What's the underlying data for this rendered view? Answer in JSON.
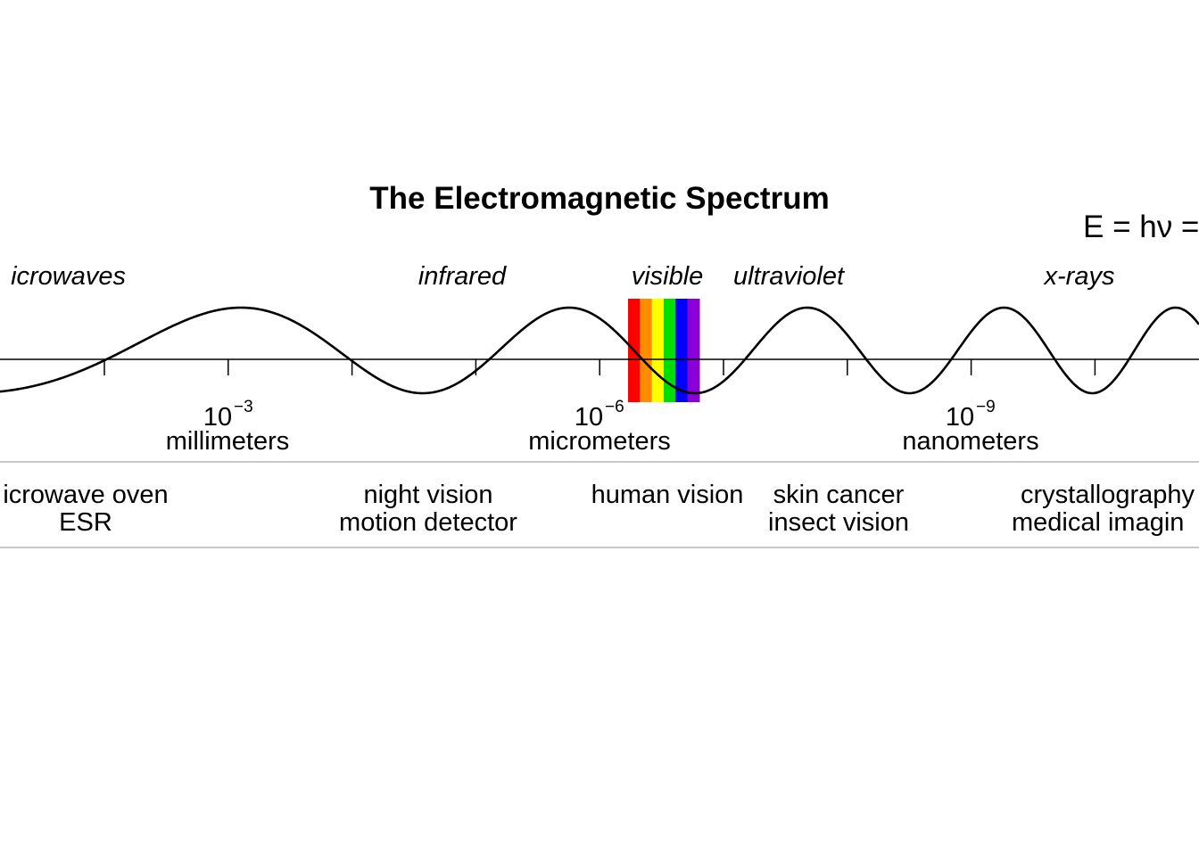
{
  "title": "The Electromagnetic Spectrum",
  "formula": "E = hν =",
  "regions": [
    {
      "id": "microwaves",
      "label": "icrowaves"
    },
    {
      "id": "infrared",
      "label": "infrared"
    },
    {
      "id": "visible",
      "label": "visible"
    },
    {
      "id": "ultraviolet",
      "label": "ultraviolet"
    },
    {
      "id": "x-rays",
      "label": "x-rays"
    }
  ],
  "scale_labels": [
    {
      "id": "millimeters",
      "base": "10",
      "exponent": "−3",
      "unit": "millimeters"
    },
    {
      "id": "micrometers",
      "base": "10",
      "exponent": "−6",
      "unit": "micrometers"
    },
    {
      "id": "nanometers",
      "base": "10",
      "exponent": "−9",
      "unit": "nanometers"
    }
  ],
  "applications": [
    {
      "id": "microwave",
      "line1": "icrowave oven",
      "line2": "ESR"
    },
    {
      "id": "night-vision",
      "line1": "night vision",
      "line2": "motion detector"
    },
    {
      "id": "human-vision",
      "line1": "human vision",
      "line2": ""
    },
    {
      "id": "skin-cancer",
      "line1": "skin cancer",
      "line2": "insect vision"
    },
    {
      "id": "crystallography",
      "line1": "crystallography",
      "line2": "medical imagin"
    }
  ],
  "visible_band_colors": [
    "#ff0000",
    "#ff8c00",
    "#ffff00",
    "#00dd00",
    "#0000ff",
    "#8b00d6"
  ],
  "colors": {
    "wave": "#000000",
    "axis": "#000000",
    "separator": "#c8c8c8",
    "background": "#ffffff"
  }
}
